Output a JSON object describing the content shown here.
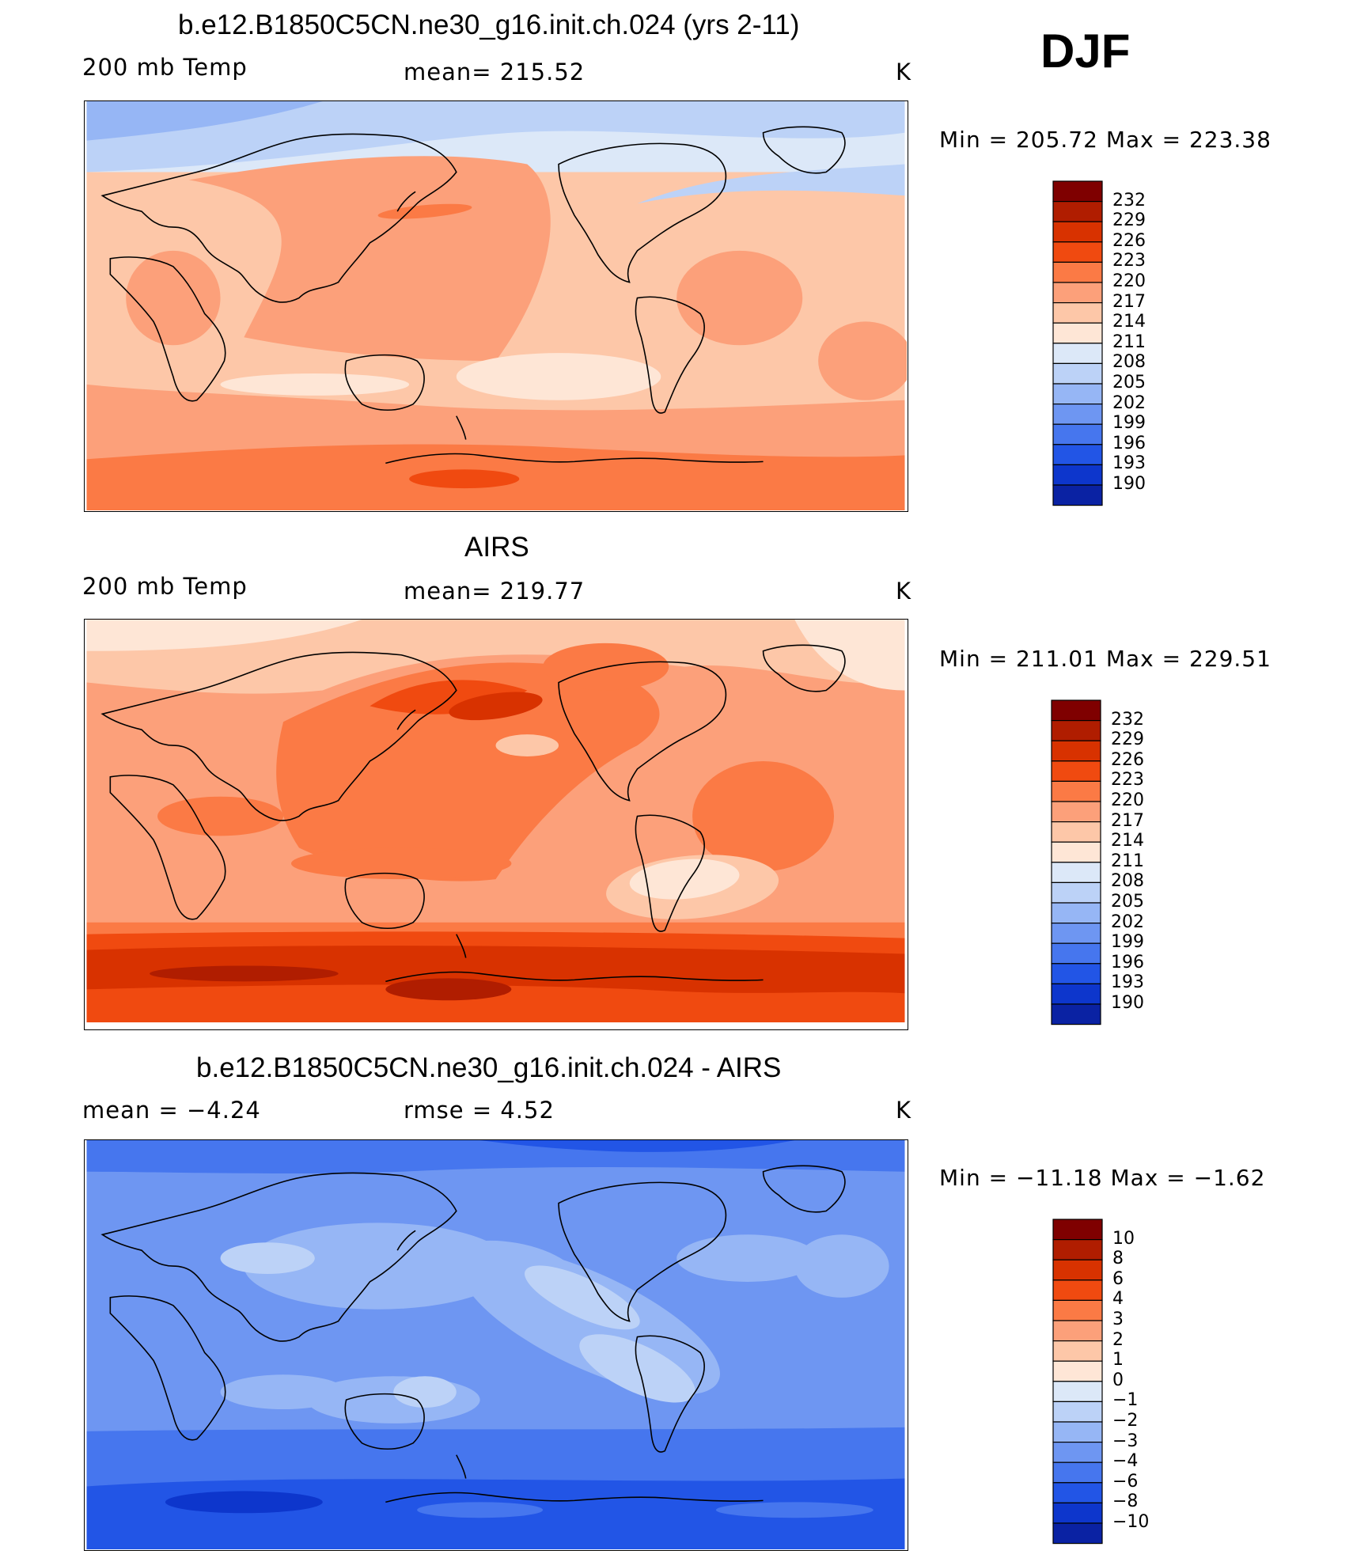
{
  "season": "DJF",
  "panels": [
    {
      "title": "b.e12.B1850C5CN.ne30_g16.init.ch.024 (yrs 2-11)",
      "left_label": "200 mb Temp",
      "center_label": "mean=  215.52",
      "units": "K",
      "minmax": "Min  =  205.72  Max  =  223.38",
      "colorbar_ticks": [
        "232",
        "229",
        "226",
        "223",
        "220",
        "217",
        "214",
        "211",
        "208",
        "205",
        "202",
        "199",
        "196",
        "193",
        "190"
      ],
      "fields": {
        "base": 217,
        "features": "model"
      }
    },
    {
      "title": "AIRS",
      "left_label": "200 mb Temp",
      "center_label": "mean=  219.77",
      "units": "K",
      "minmax": "Min  =  211.01  Max  =  229.51",
      "colorbar_ticks": [
        "232",
        "229",
        "226",
        "223",
        "220",
        "217",
        "214",
        "211",
        "208",
        "205",
        "202",
        "199",
        "196",
        "193",
        "190"
      ],
      "fields": {
        "base": 220,
        "features": "obs"
      }
    },
    {
      "title": "b.e12.B1850C5CN.ne30_g16.init.ch.024 - AIRS",
      "left_label": "mean  =    −4.24",
      "center_label": "rmse  =     4.52",
      "units": "K",
      "minmax": "Min  =  −11.18  Max  =    −1.62",
      "colorbar_ticks": [
        "10",
        "8",
        "6",
        "4",
        "3",
        "2",
        "1",
        "0",
        "−1",
        "−2",
        "−3",
        "−4",
        "−6",
        "−8",
        "−10"
      ],
      "fields": {
        "base": -4,
        "features": "diff"
      }
    }
  ],
  "colors": {
    "scale": [
      "#7f0000",
      "#b01d00",
      "#d83200",
      "#f04a10",
      "#fb7a45",
      "#fca07a",
      "#fdc7a8",
      "#fee6d6",
      "#dce8f8",
      "#bcd2f7",
      "#96b6f5",
      "#6e96f2",
      "#4676ee",
      "#2255e6",
      "#0d36cc",
      "#0a22a3",
      "#040f80"
    ]
  }
}
